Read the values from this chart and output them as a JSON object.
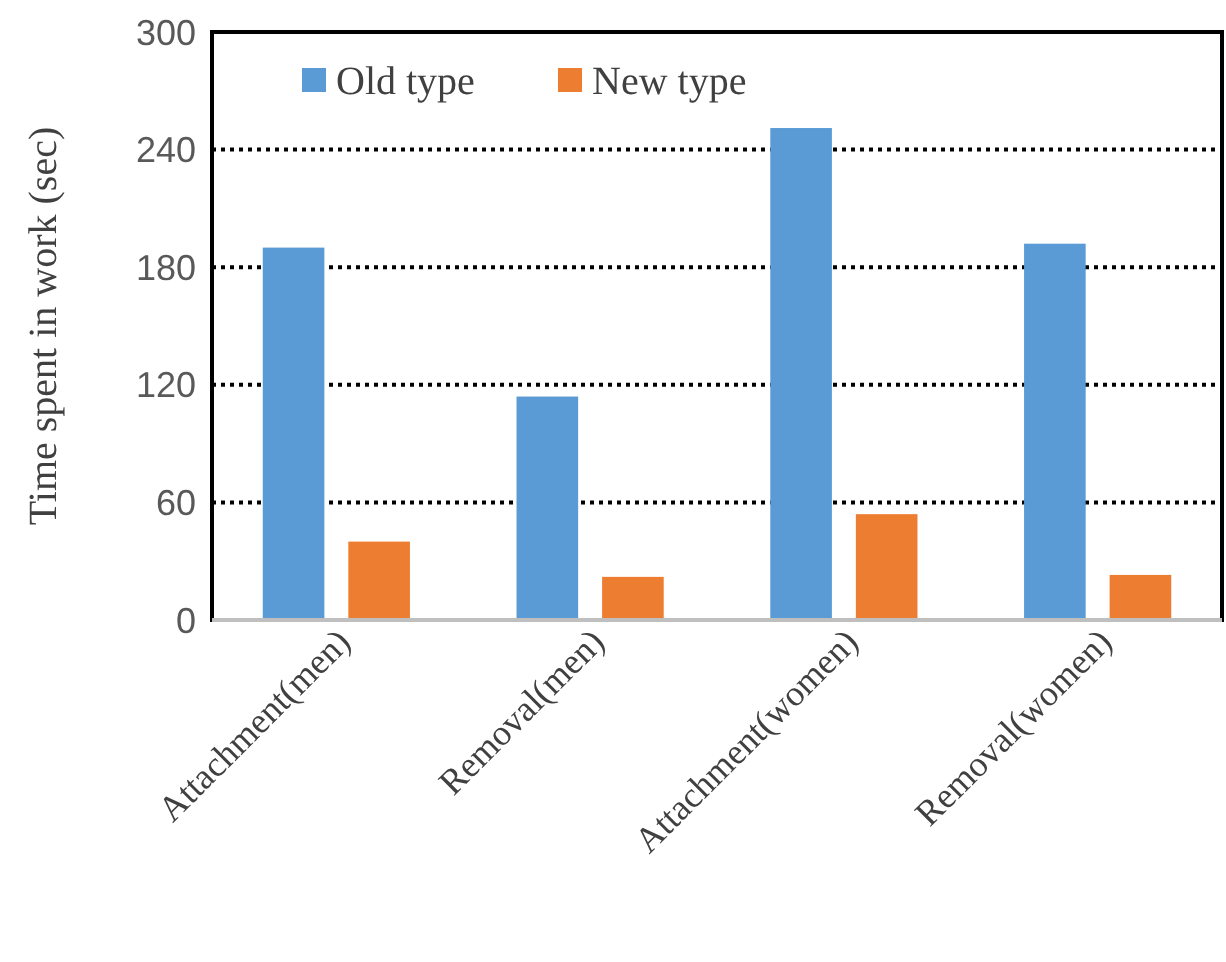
{
  "chart_data": {
    "type": "bar",
    "ylabel": "Time spent in work (sec)",
    "categories": [
      "Attachment(men)",
      "Removal(men)",
      "Attachment(women)",
      "Removal(women)"
    ],
    "series": [
      {
        "name": "Old type",
        "color": "#5b9bd5",
        "values": [
          190,
          114,
          251,
          192
        ]
      },
      {
        "name": "New type",
        "color": "#ed7d31",
        "values": [
          40,
          22,
          54,
          23
        ]
      }
    ],
    "ylim": [
      0,
      300
    ],
    "yticks": [
      0,
      60,
      120,
      180,
      240,
      300
    ],
    "grid": "y",
    "legend": "top left"
  }
}
